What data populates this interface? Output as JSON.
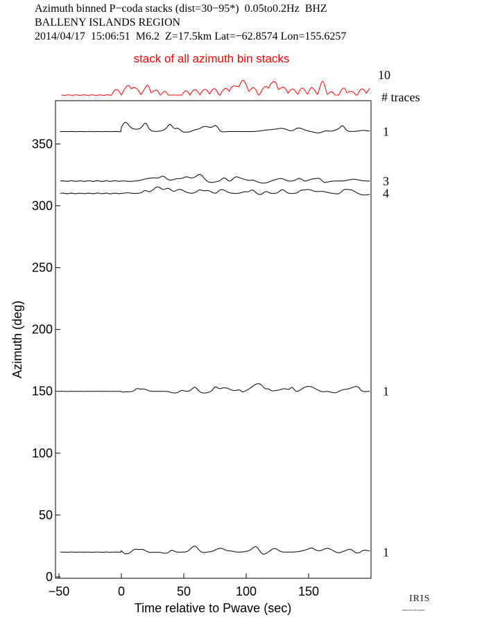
{
  "header": {
    "line1": "Azimuth binned P−coda stacks (dist=30−95*)  0.05to0.2Hz  BHZ",
    "line2": "BALLENY ISLANDS REGION",
    "line3": "2014/04/17  15:06:51  M6.2  Z=17.5km Lat=−62.8574 Lon=155.6257"
  },
  "logo": {
    "text": "IRIS",
    "url": "www.iris.edu/spud"
  },
  "chart_data": {
    "type": "line",
    "xlabel": "Time relative to Pwave (sec)",
    "ylabel": "Azimuth (deg)",
    "xlim": [
      -50,
      200
    ],
    "ylim": [
      0,
      385
    ],
    "xticks": [
      -50,
      0,
      50,
      100,
      150
    ],
    "yticks": [
      0,
      50,
      100,
      150,
      200,
      250,
      300,
      350
    ],
    "stack_label": "stack of all azimuth bin stacks",
    "stack_count": "10",
    "traces_header": "# traces",
    "colors": {
      "stack": "#ff0000",
      "traces": "#000000"
    },
    "series": [
      {
        "azimuth": 360,
        "count": "1"
      },
      {
        "azimuth": 320,
        "count": "3"
      },
      {
        "azimuth": 310,
        "count": "4"
      },
      {
        "azimuth": 150,
        "count": "1"
      },
      {
        "azimuth": 20,
        "count": "1"
      }
    ]
  }
}
